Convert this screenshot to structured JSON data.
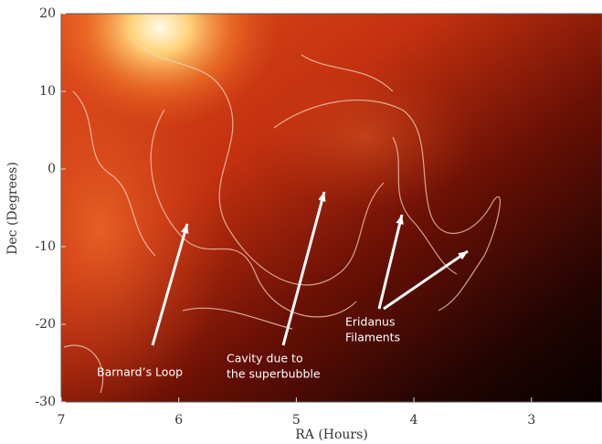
{
  "chart_data": {
    "type": "image",
    "x_label": "RA (Hours)",
    "y_label": "Dec (Degrees)",
    "xlim": [
      7,
      2.4
    ],
    "ylim": [
      -30,
      20
    ],
    "xticks": [
      7,
      6,
      5,
      4,
      3
    ],
    "yticks": [
      -30,
      -20,
      -10,
      0,
      10,
      20
    ],
    "annotations": [
      {
        "text": [
          "Barnard’s Loop"
        ]
      },
      {
        "text": [
          "Cavity due to",
          "the superbubble"
        ]
      },
      {
        "text": [
          "Eridanus",
          "Filaments"
        ]
      }
    ]
  }
}
